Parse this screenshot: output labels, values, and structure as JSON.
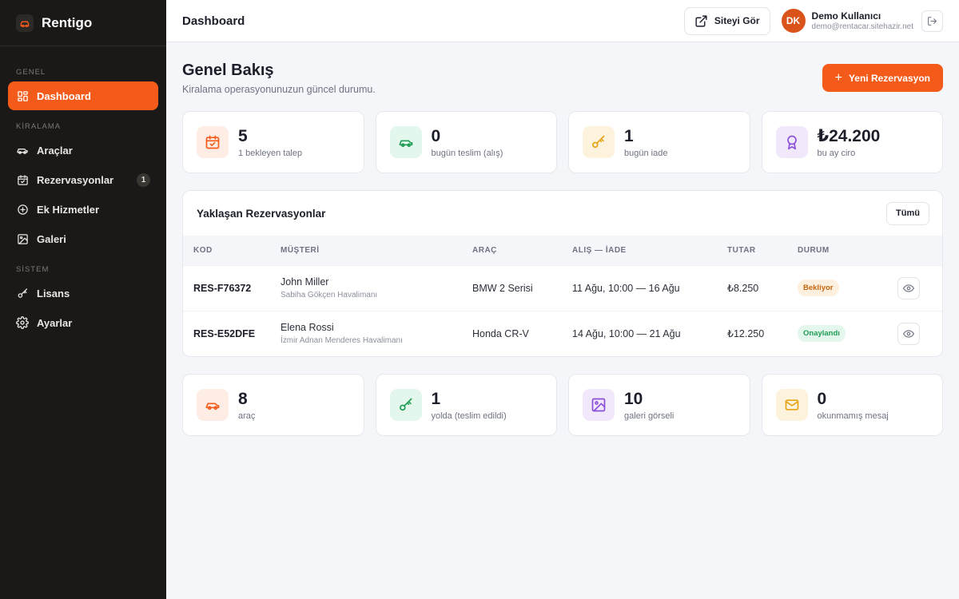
{
  "brand": {
    "name": "Rentigo"
  },
  "sidebar": {
    "sections": {
      "genel": "GENEL",
      "kiralama": "KİRALAMA",
      "sistem": "SİSTEM"
    },
    "items": [
      {
        "label": "Dashboard",
        "icon": "grid-icon"
      },
      {
        "label": "Araçlar",
        "icon": "car-icon"
      },
      {
        "label": "Rezervasyonlar",
        "icon": "calendar-icon",
        "badge": "1"
      },
      {
        "label": "Ek Hizmetler",
        "icon": "plus-circle-icon"
      },
      {
        "label": "Galeri",
        "icon": "image-icon"
      },
      {
        "label": "Lisans",
        "icon": "key-icon"
      },
      {
        "label": "Ayarlar",
        "icon": "gear-icon"
      }
    ]
  },
  "header": {
    "title": "Dashboard",
    "view_site": "Siteyi Gör",
    "user": {
      "initials": "DK",
      "name": "Demo Kullanıcı",
      "email": "demo@rentacar.sitehazir.net"
    }
  },
  "page": {
    "title": "Genel Bakış",
    "subtitle": "Kiralama operasyonunuzun güncel durumu.",
    "new_reservation": "Yeni Rezervasyon"
  },
  "stats_top": [
    {
      "value": "5",
      "label": "1 bekleyen talep",
      "icon": "calendar-check-icon",
      "color": "#f45b1b"
    },
    {
      "value": "0",
      "label": "bugün teslim (alış)",
      "icon": "car-icon",
      "color": "#1f9d55"
    },
    {
      "value": "1",
      "label": "bugün iade",
      "icon": "key-icon",
      "color": "#e6a313"
    },
    {
      "value": "₺24.200",
      "label": "bu ay ciro",
      "icon": "award-icon",
      "color": "#8b4fd8"
    }
  ],
  "reservations": {
    "title": "Yaklaşan Rezervasyonlar",
    "all_button": "Tümü",
    "columns": [
      "KOD",
      "MÜŞTERİ",
      "ARAÇ",
      "ALIŞ — İADE",
      "TUTAR",
      "DURUM"
    ],
    "rows": [
      {
        "code": "RES-F76372",
        "customer": "John Miller",
        "location": "Sabiha Gökçen Havalimanı",
        "car": "BMW 2 Serisi",
        "dates": "11 Ağu, 10:00 — 16 Ağu",
        "amount": "₺8.250",
        "status": "Bekliyor",
        "status_type": "wait"
      },
      {
        "code": "RES-E52DFE",
        "customer": "Elena Rossi",
        "location": "İzmir Adnan Menderes Havalimanı",
        "car": "Honda CR-V",
        "dates": "14 Ağu, 10:00 — 21 Ağu",
        "amount": "₺12.250",
        "status": "Onaylandı",
        "status_type": "ok"
      }
    ]
  },
  "stats_bottom": [
    {
      "value": "8",
      "label": "araç",
      "icon": "car-icon",
      "color": "#f45b1b"
    },
    {
      "value": "1",
      "label": "yolda (teslim edildi)",
      "icon": "key-icon",
      "color": "#1f9d55"
    },
    {
      "value": "10",
      "label": "galeri görseli",
      "icon": "image-icon",
      "color": "#8b4fd8"
    },
    {
      "value": "0",
      "label": "okunmamış mesaj",
      "icon": "mail-icon",
      "color": "#e6a313"
    }
  ]
}
